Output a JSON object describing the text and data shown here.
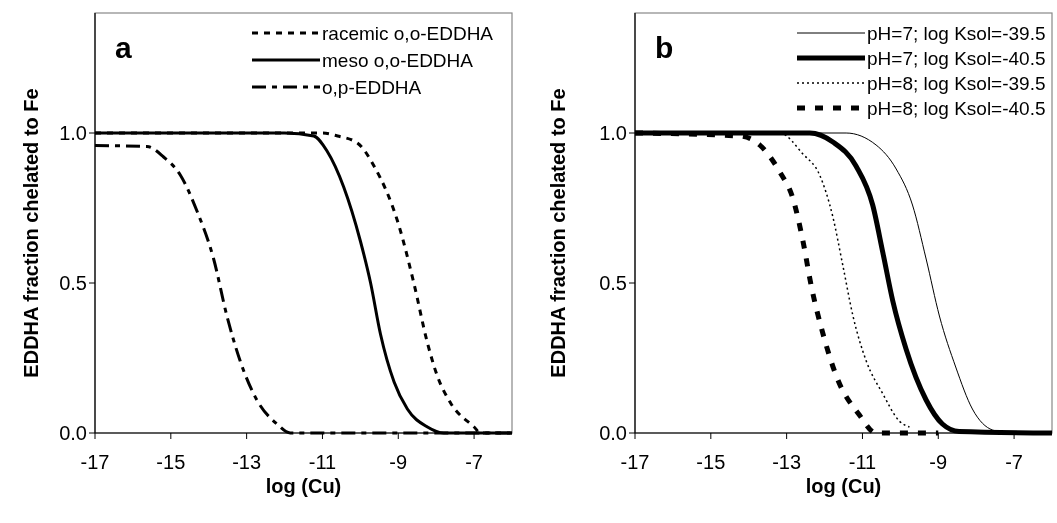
{
  "chart_data": [
    {
      "type": "line",
      "annotations": [
        "a"
      ],
      "xlabel": "log (Cu)",
      "ylabel": "EDDHA fraction chelated to Fe",
      "xlim": [
        -17,
        -6
      ],
      "xticks": [
        -17,
        -15,
        -13,
        -11,
        -9,
        -7
      ],
      "ylim": [
        0,
        1.4
      ],
      "yticks": [
        {
          "value": 0,
          "label": "0.0"
        },
        {
          "value": 0.5,
          "label": "0.5"
        },
        {
          "value": 1,
          "label": "1.0"
        }
      ],
      "legend": "top right",
      "series": [
        {
          "name": "racemic o,o-EDDHA",
          "color": "#000000",
          "line_style": "dashed",
          "x": [
            -17,
            -12,
            -11,
            -10.6,
            -10.08,
            -9.64,
            -8.98,
            -8.59,
            -8.23,
            -7.97,
            -7.62,
            -7,
            -6.83,
            -6
          ],
          "values": [
            1,
            1,
            1,
            0.99,
            0.967,
            0.89,
            0.69,
            0.5,
            0.3,
            0.19,
            0.1,
            0.02,
            0,
            0
          ]
        },
        {
          "name": "meso o,o-EDDHA",
          "color": "#000000",
          "line_style": "solid",
          "x": [
            -17,
            -12,
            -11.23,
            -10.88,
            -10.44,
            -10,
            -9.73,
            -9.47,
            -9.11,
            -8.76,
            -8.23,
            -7.8,
            -6
          ],
          "values": [
            1,
            1,
            0.99,
            0.94,
            0.82,
            0.64,
            0.5,
            0.33,
            0.17,
            0.08,
            0.02,
            0,
            0
          ]
        },
        {
          "name": "o,p-EDDHA",
          "color": "#000000",
          "line_style": "dashed",
          "x": [
            -17,
            -15.63,
            -15.19,
            -14.75,
            -14.31,
            -13.87,
            -13.52,
            -13.17,
            -12.73,
            -12.2,
            -11.85,
            -6
          ],
          "values": [
            0.958,
            0.955,
            0.92,
            0.86,
            0.74,
            0.58,
            0.39,
            0.24,
            0.11,
            0.03,
            0,
            0
          ]
        }
      ]
    },
    {
      "type": "line",
      "annotations": [
        "b"
      ],
      "xlabel": "log (Cu)",
      "ylabel": "EDDHA fraction chelated to Fe",
      "xlim": [
        -17,
        -6
      ],
      "xticks": [
        -17,
        -15,
        -13,
        -11,
        -9,
        -7
      ],
      "ylim": [
        0,
        1.4
      ],
      "yticks": [
        {
          "value": 0,
          "label": "0.0"
        },
        {
          "value": 0.5,
          "label": "0.5"
        },
        {
          "value": 1,
          "label": "1.0"
        }
      ],
      "legend": "top right",
      "series": [
        {
          "name": "pH=7; log Ksol=-39.5",
          "color": "#000000",
          "line_style": "solid",
          "x": [
            -17,
            -11.43,
            -10.64,
            -10.11,
            -9.68,
            -9.32,
            -8.97,
            -8.54,
            -8.1,
            -7.57,
            -7.13,
            -6
          ],
          "values": [
            1,
            1,
            0.96,
            0.88,
            0.76,
            0.58,
            0.39,
            0.22,
            0.08,
            0.01,
            0,
            0
          ]
        },
        {
          "name": "pH=7; log Ksol=-40.5",
          "color": "#000000",
          "line_style": "solid",
          "x": [
            -17,
            -12.39,
            -11.78,
            -11.17,
            -10.73,
            -10.46,
            -10.2,
            -9.85,
            -9.32,
            -8.89,
            -8.45,
            -6
          ],
          "values": [
            1,
            1,
            0.97,
            0.89,
            0.76,
            0.6,
            0.44,
            0.28,
            0.11,
            0.03,
            0.005,
            0
          ]
        },
        {
          "name": "pH=8; log Ksol=-39.5",
          "color": "#000000",
          "line_style": "dotted",
          "x": [
            -17,
            -13.18,
            -12.57,
            -12.13,
            -11.78,
            -11.52,
            -11.25,
            -10.9,
            -10.46,
            -10.03,
            -9.76
          ],
          "values": [
            1,
            1,
            0.93,
            0.86,
            0.72,
            0.56,
            0.39,
            0.24,
            0.13,
            0.04,
            0.02
          ]
        },
        {
          "name": "pH=8; log Ksol=-40.5",
          "color": "#000000",
          "line_style": "dashed",
          "x": [
            -17,
            -14.24,
            -13.71,
            -13.18,
            -12.83,
            -12.57,
            -12.35,
            -12.04,
            -11.69,
            -11.08,
            -10.64,
            -9
          ],
          "values": [
            1,
            0.99,
            0.96,
            0.87,
            0.78,
            0.64,
            0.49,
            0.33,
            0.19,
            0.06,
            0,
            0
          ]
        }
      ]
    }
  ]
}
